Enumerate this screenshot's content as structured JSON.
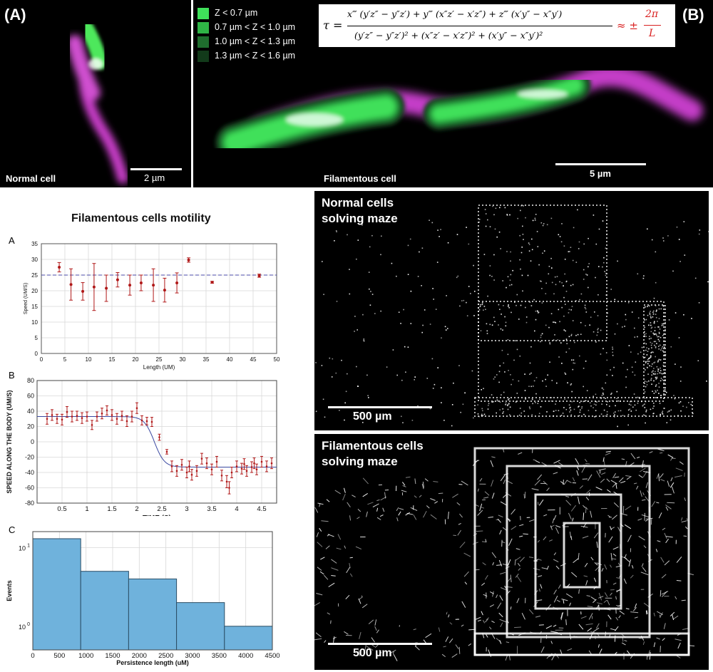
{
  "panel_A": {
    "label": "(A)",
    "caption": "Normal cell",
    "scalebar_label": "2 µm"
  },
  "panel_B": {
    "label": "(B)",
    "caption": "Filamentous cell",
    "scalebar_label": "5 µm",
    "legend": [
      {
        "label": "Z < 0.7 µm",
        "color": "#3fe05a"
      },
      {
        "label": "0.7 µm < Z < 1.0 µm",
        "color": "#2fb446"
      },
      {
        "label": "1.0 µm < Z < 1.3 µm",
        "color": "#1f6e2e"
      },
      {
        "label": "1.3 µm < Z < 1.6 µm",
        "color": "#123a1a"
      }
    ],
    "formula": {
      "lhs": "τ =",
      "numerator": "x‴ (y′z″ − y″z′) + y‴ (x″z′ − x′z″) + z‴ (x′y″ − x″y′)",
      "denominator": "(y′z″ − y″z′)² + (x″z′ − x′z″)² + (x′y″ − x″y′)²",
      "approx": "≈ ±",
      "approx_num": "2π",
      "approx_den": "L"
    }
  },
  "motility": {
    "title": "Filamentous cells motility"
  },
  "chart_data": [
    {
      "panel": "A",
      "type": "scatter",
      "xlabel": "Length (UM)",
      "ylabel": "Speed (UM/S)",
      "xlim": [
        0,
        50
      ],
      "ylim": [
        0,
        35
      ],
      "xticks": [
        "0",
        "5",
        "10",
        "15",
        "20",
        "25",
        "30",
        "35",
        "40",
        "45",
        "50"
      ],
      "yticks": [
        "0",
        "5",
        "10",
        "15",
        "20",
        "25",
        "30",
        "35"
      ],
      "grid": true,
      "reference_line": 25,
      "points": [
        {
          "x": 3.8,
          "y": 27.5,
          "err": 1.5
        },
        {
          "x": 6.3,
          "y": 22.0,
          "err": 5.0
        },
        {
          "x": 8.8,
          "y": 19.8,
          "err": 2.8
        },
        {
          "x": 11.2,
          "y": 21.2,
          "err": 7.5
        },
        {
          "x": 13.8,
          "y": 20.8,
          "err": 4.2
        },
        {
          "x": 16.2,
          "y": 23.5,
          "err": 2.3
        },
        {
          "x": 18.8,
          "y": 21.8,
          "err": 3.2
        },
        {
          "x": 21.2,
          "y": 22.5,
          "err": 2.5
        },
        {
          "x": 23.8,
          "y": 21.8,
          "err": 5.2
        },
        {
          "x": 26.2,
          "y": 20.2,
          "err": 3.8
        },
        {
          "x": 28.8,
          "y": 22.5,
          "err": 3.2
        },
        {
          "x": 31.3,
          "y": 29.8,
          "err": 0.7
        },
        {
          "x": 36.3,
          "y": 22.7,
          "err": 0.3
        },
        {
          "x": 46.3,
          "y": 24.8,
          "err": 0.5
        }
      ]
    },
    {
      "panel": "B",
      "type": "line",
      "xlabel": "TIME (S)",
      "ylabel": "SPEED ALONG THE BODY (UM/S)",
      "xlim": [
        0,
        4.8
      ],
      "ylim": [
        -80,
        80
      ],
      "xticks": [
        "0.5",
        "1",
        "1.5",
        "2",
        "2.5",
        "3",
        "3.5",
        "4",
        "4.5"
      ],
      "yticks": [
        "-80",
        "-60",
        "-40",
        "-20",
        "0",
        "20",
        "40",
        "60",
        "80"
      ],
      "grid": true,
      "fit": {
        "high": 33,
        "low": -33,
        "midpoint": 2.35,
        "width": 0.1
      },
      "points": [
        {
          "x": 0.2,
          "y": 30,
          "err": 7
        },
        {
          "x": 0.3,
          "y": 35,
          "err": 7
        },
        {
          "x": 0.4,
          "y": 30,
          "err": 6
        },
        {
          "x": 0.5,
          "y": 29,
          "err": 7
        },
        {
          "x": 0.6,
          "y": 39,
          "err": 7
        },
        {
          "x": 0.7,
          "y": 33,
          "err": 7
        },
        {
          "x": 0.8,
          "y": 34,
          "err": 6
        },
        {
          "x": 0.9,
          "y": 31,
          "err": 7
        },
        {
          "x": 1.0,
          "y": 33,
          "err": 6
        },
        {
          "x": 1.1,
          "y": 22,
          "err": 6
        },
        {
          "x": 1.2,
          "y": 33,
          "err": 6
        },
        {
          "x": 1.3,
          "y": 37,
          "err": 7
        },
        {
          "x": 1.4,
          "y": 41,
          "err": 6
        },
        {
          "x": 1.5,
          "y": 35,
          "err": 7
        },
        {
          "x": 1.6,
          "y": 30,
          "err": 7
        },
        {
          "x": 1.7,
          "y": 34,
          "err": 6
        },
        {
          "x": 1.8,
          "y": 27,
          "err": 7
        },
        {
          "x": 1.9,
          "y": 33,
          "err": 7
        },
        {
          "x": 2.0,
          "y": 44,
          "err": 7
        },
        {
          "x": 2.1,
          "y": 28,
          "err": 6
        },
        {
          "x": 2.2,
          "y": 27,
          "err": 5
        },
        {
          "x": 2.3,
          "y": 26,
          "err": 6
        },
        {
          "x": 2.45,
          "y": 6,
          "err": 4
        },
        {
          "x": 2.6,
          "y": -13,
          "err": 3
        },
        {
          "x": 2.7,
          "y": -32,
          "err": 7
        },
        {
          "x": 2.8,
          "y": -38,
          "err": 7
        },
        {
          "x": 2.9,
          "y": -30,
          "err": 7
        },
        {
          "x": 3.0,
          "y": -40,
          "err": 7
        },
        {
          "x": 3.05,
          "y": -32,
          "err": 7
        },
        {
          "x": 3.1,
          "y": -43,
          "err": 7
        },
        {
          "x": 3.2,
          "y": -38,
          "err": 7
        },
        {
          "x": 3.3,
          "y": -22,
          "err": 7
        },
        {
          "x": 3.4,
          "y": -28,
          "err": 7
        },
        {
          "x": 3.5,
          "y": -36,
          "err": 7
        },
        {
          "x": 3.6,
          "y": -26,
          "err": 7
        },
        {
          "x": 3.7,
          "y": -44,
          "err": 7
        },
        {
          "x": 3.8,
          "y": -52,
          "err": 8
        },
        {
          "x": 3.85,
          "y": -60,
          "err": 8
        },
        {
          "x": 3.9,
          "y": -40,
          "err": 7
        },
        {
          "x": 4.0,
          "y": -32,
          "err": 7
        },
        {
          "x": 4.1,
          "y": -35,
          "err": 7
        },
        {
          "x": 4.15,
          "y": -29,
          "err": 7
        },
        {
          "x": 4.2,
          "y": -38,
          "err": 7
        },
        {
          "x": 4.3,
          "y": -33,
          "err": 7
        },
        {
          "x": 4.35,
          "y": -28,
          "err": 7
        },
        {
          "x": 4.4,
          "y": -36,
          "err": 7
        },
        {
          "x": 4.5,
          "y": -26,
          "err": 7
        },
        {
          "x": 4.6,
          "y": -32,
          "err": 7
        },
        {
          "x": 4.7,
          "y": -28,
          "err": 7
        }
      ]
    },
    {
      "panel": "C",
      "type": "bar",
      "xlabel": "Persistence length (uM)",
      "ylabel": "Events",
      "xlim": [
        0,
        4500
      ],
      "ylog": true,
      "ylim": [
        0.5,
        16
      ],
      "xticks": [
        "0",
        "500",
        "1000",
        "1500",
        "2000",
        "2500",
        "3000",
        "3500",
        "4000",
        "4500"
      ],
      "yticks": [
        {
          "label": "10",
          "exp": "0",
          "value": 1
        },
        {
          "label": "10",
          "exp": "1",
          "value": 10
        }
      ],
      "grid": true,
      "bins": [
        {
          "x0": 0,
          "x1": 900,
          "value": 13
        },
        {
          "x0": 900,
          "x1": 1800,
          "value": 5
        },
        {
          "x0": 1800,
          "x1": 2700,
          "value": 4
        },
        {
          "x0": 2700,
          "x1": 3600,
          "value": 2
        },
        {
          "x0": 3600,
          "x1": 4500,
          "value": 1
        }
      ]
    }
  ],
  "maze_normal": {
    "title_line1": "Normal cells",
    "title_line2": "solving maze",
    "scalebar_label": "500 µm"
  },
  "maze_filamentous": {
    "title_line1": "Filamentous cells",
    "title_line2": "solving maze",
    "scalebar_label": "500 µm"
  }
}
